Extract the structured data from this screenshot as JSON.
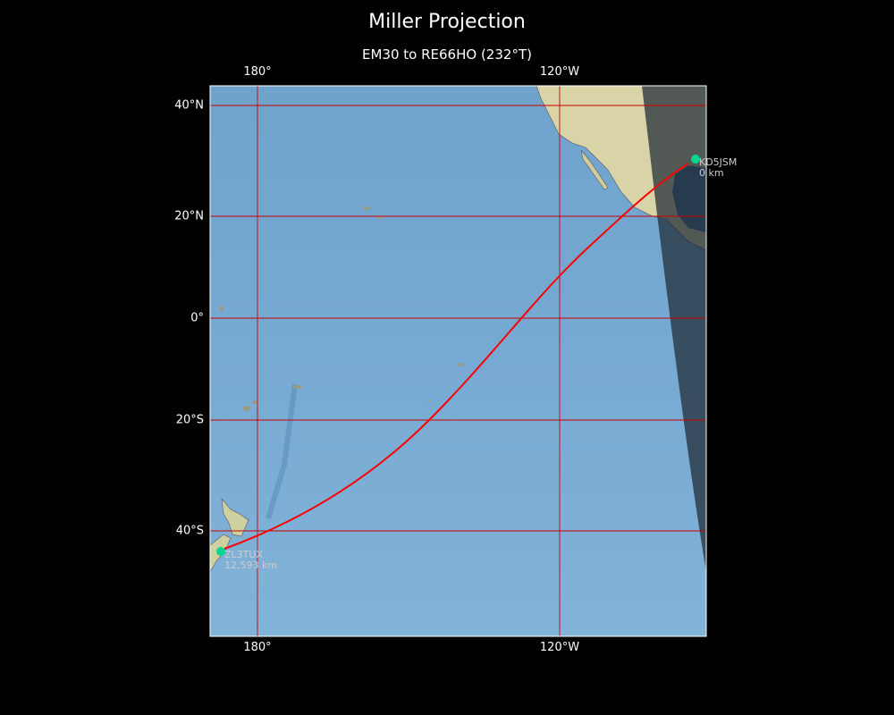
{
  "title": "Miller Projection",
  "subtitle": "EM30 to RE66HO (232°T)",
  "x_ticks_top": [
    "180°",
    "120°W"
  ],
  "x_ticks_bottom": [
    "180°",
    "120°W"
  ],
  "y_ticks": [
    "40°N",
    "20°N",
    "0°",
    "20°S",
    "40°S"
  ],
  "stations": [
    {
      "call": "KD5JSM",
      "distance": "0 km",
      "lat": 30.5,
      "lon": -97.9
    },
    {
      "call": "ZL3TUX",
      "distance": "12,593 km",
      "lat": -43.5,
      "lon": 172.6
    }
  ],
  "colors": {
    "path": "#ff0000",
    "marker": "#00d68f",
    "grid": "#cc0000",
    "ocean": "#78aad0",
    "night": "#1f2a33"
  }
}
